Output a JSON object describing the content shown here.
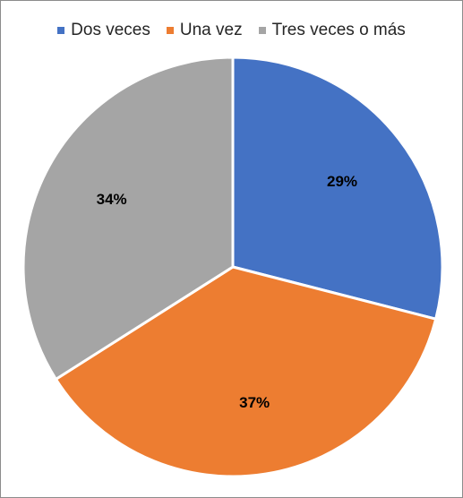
{
  "chart_data": {
    "type": "pie",
    "title": "",
    "legend_position": "top",
    "categories": [
      "Dos veces",
      "Una vez",
      "Tres veces o más"
    ],
    "values": [
      29,
      37,
      34
    ],
    "labels": [
      "29%",
      "37%",
      "34%"
    ],
    "colors": [
      "#4472C4",
      "#ED7D31",
      "#A5A5A5"
    ],
    "start_angle_deg": 0,
    "direction": "clockwise"
  }
}
